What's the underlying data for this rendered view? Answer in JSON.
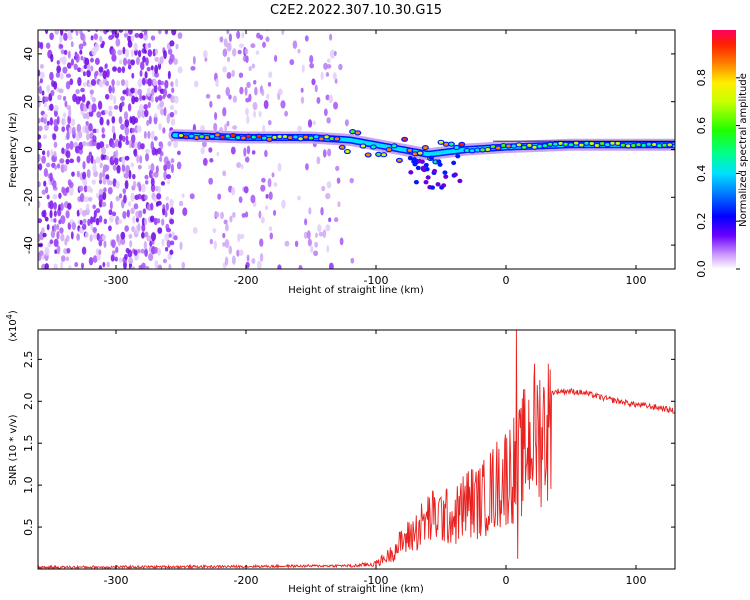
{
  "title": "C2E2.2022.307.10.30.G15",
  "colors": {
    "line": "#e8201e",
    "purple_dark": "#6a00e0",
    "purple_light": "#c9a4f0",
    "frame": "#000000"
  },
  "chart_data": [
    {
      "type": "heatmap",
      "name": "spectrogram",
      "xlabel": "Height of straight line (km)",
      "ylabel": "Frequency (Hz)",
      "xlim": [
        -360,
        130
      ],
      "ylim": [
        -50,
        50
      ],
      "xticks": [
        -300,
        -200,
        -100,
        0,
        100
      ],
      "xtick_labels": [
        "-300",
        "-200",
        "-100",
        "0",
        "100"
      ],
      "yticks": [
        -40,
        -20,
        0,
        20,
        40
      ],
      "ytick_labels": [
        "-40",
        "-20",
        "0",
        "20",
        "40"
      ],
      "colorbar": {
        "label": "Normalized spectral amplitude",
        "range": [
          0,
          1
        ],
        "ticks": [
          0.0,
          0.2,
          0.4,
          0.6,
          0.8
        ],
        "tick_labels": [
          "0.0",
          "0.2",
          "0.4",
          "0.6",
          "0.8"
        ]
      },
      "carrier_line": {
        "description": "strong signal near 5 Hz drifting to ~2 Hz",
        "x": [
          -255,
          -200,
          -150,
          -120,
          -100,
          -80,
          -60,
          -45,
          -30,
          0,
          50,
          100,
          130
        ],
        "y": [
          6,
          5,
          5,
          4,
          2,
          0,
          -2,
          -1,
          0,
          1,
          2,
          2,
          2
        ]
      }
    },
    {
      "type": "line",
      "name": "snr",
      "xlabel": "Height of straight line (km)",
      "ylabel": "SNR (10 * v/v)",
      "y_multiplier": "(x10",
      "y_multiplier_exp": "4",
      "y_multiplier_close": ")",
      "xlim": [
        -360,
        130
      ],
      "ylim": [
        0,
        2.85
      ],
      "xticks": [
        -300,
        -200,
        -100,
        0,
        100
      ],
      "xtick_labels": [
        "-300",
        "-200",
        "-100",
        "0",
        "100"
      ],
      "yticks": [
        0.5,
        1.0,
        1.5,
        2.0,
        2.5
      ],
      "ytick_labels": [
        "0.5",
        "1.0",
        "1.5",
        "2.0",
        "2.5"
      ],
      "series": [
        {
          "name": "SNR",
          "envelope_x": [
            -360,
            -200,
            -120,
            -100,
            -90,
            -80,
            -70,
            -60,
            -50,
            -40,
            -30,
            -20,
            -10,
            0,
            5,
            10,
            15,
            20,
            30,
            40,
            50,
            60,
            70,
            80,
            90,
            100,
            110,
            120,
            130
          ],
          "envelope_y": [
            0.02,
            0.03,
            0.04,
            0.08,
            0.2,
            0.4,
            0.55,
            0.75,
            0.8,
            0.75,
            1.0,
            1.0,
            1.2,
            1.4,
            1.5,
            1.55,
            1.8,
            2.0,
            2.08,
            2.12,
            2.12,
            2.1,
            2.06,
            2.02,
            1.99,
            1.96,
            1.94,
            1.92,
            1.88
          ],
          "spike": {
            "x": 8,
            "y": 2.85,
            "dip_y": 0.12
          }
        }
      ]
    }
  ]
}
